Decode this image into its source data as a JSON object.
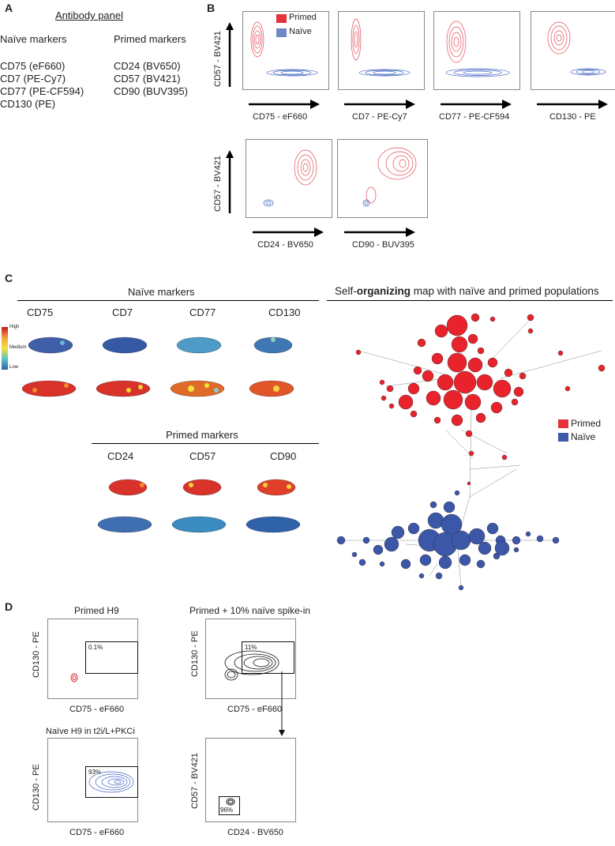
{
  "panels": {
    "a": "A",
    "b": "B",
    "c": "C",
    "d": "D"
  },
  "antibody": {
    "title": "Antibody panel",
    "naive_header": "Naïve markers",
    "primed_header": "Primed markers",
    "naive": [
      "CD75 (eF660)",
      "CD7 (PE-Cy7)",
      "CD77 (PE-CF594)",
      "CD130 (PE)"
    ],
    "primed": [
      "CD24 (BV650)",
      "CD57 (BV421)",
      "CD90 (BUV395)"
    ]
  },
  "flow": {
    "ylabel": "CD57 - BV421",
    "legend": {
      "primed": "Primed",
      "naive": "Naïve"
    },
    "top_x": [
      "CD75 - eF660",
      "CD7 - PE-Cy7",
      "CD77 - PE-CF594",
      "CD130 - PE"
    ],
    "bottom_x": [
      "CD24 - BV650",
      "CD90 - BUV395"
    ]
  },
  "som": {
    "naive_title": "Naïve markers",
    "primed_title": "Primed markers",
    "naive_markers": [
      "CD75",
      "CD7",
      "CD77",
      "CD130"
    ],
    "primed_markers": [
      "CD24",
      "CD57",
      "CD90"
    ],
    "scale": {
      "high": "High",
      "medium": "Medium",
      "low": "Low"
    },
    "map_title_a": "Self-",
    "map_title_b": "organizing",
    "map_title_c": " map with naïve and primed populations",
    "legend": {
      "primed": "Primed",
      "naive": "Naïve"
    }
  },
  "spike": {
    "primed_title": "Primed H9",
    "spike_title": "Primed + 10% naïve spike-in",
    "naive_title": "Naïve H9 in t2i/L+PKCi",
    "gate_primed": "0.1%",
    "gate_spike": "11%",
    "gate_naive": "93%",
    "gate_cd57": "96%",
    "y_cd130": "CD130 - PE",
    "x_cd75": "CD75 - eF660",
    "y_cd57": "CD57 - BV421",
    "x_cd24": "CD24 - BV650"
  },
  "colors": {
    "primed": "#e5323b",
    "naive": "#4a65b0",
    "contour_naive": "#3f63c2",
    "contour_primed": "#e24b55"
  }
}
